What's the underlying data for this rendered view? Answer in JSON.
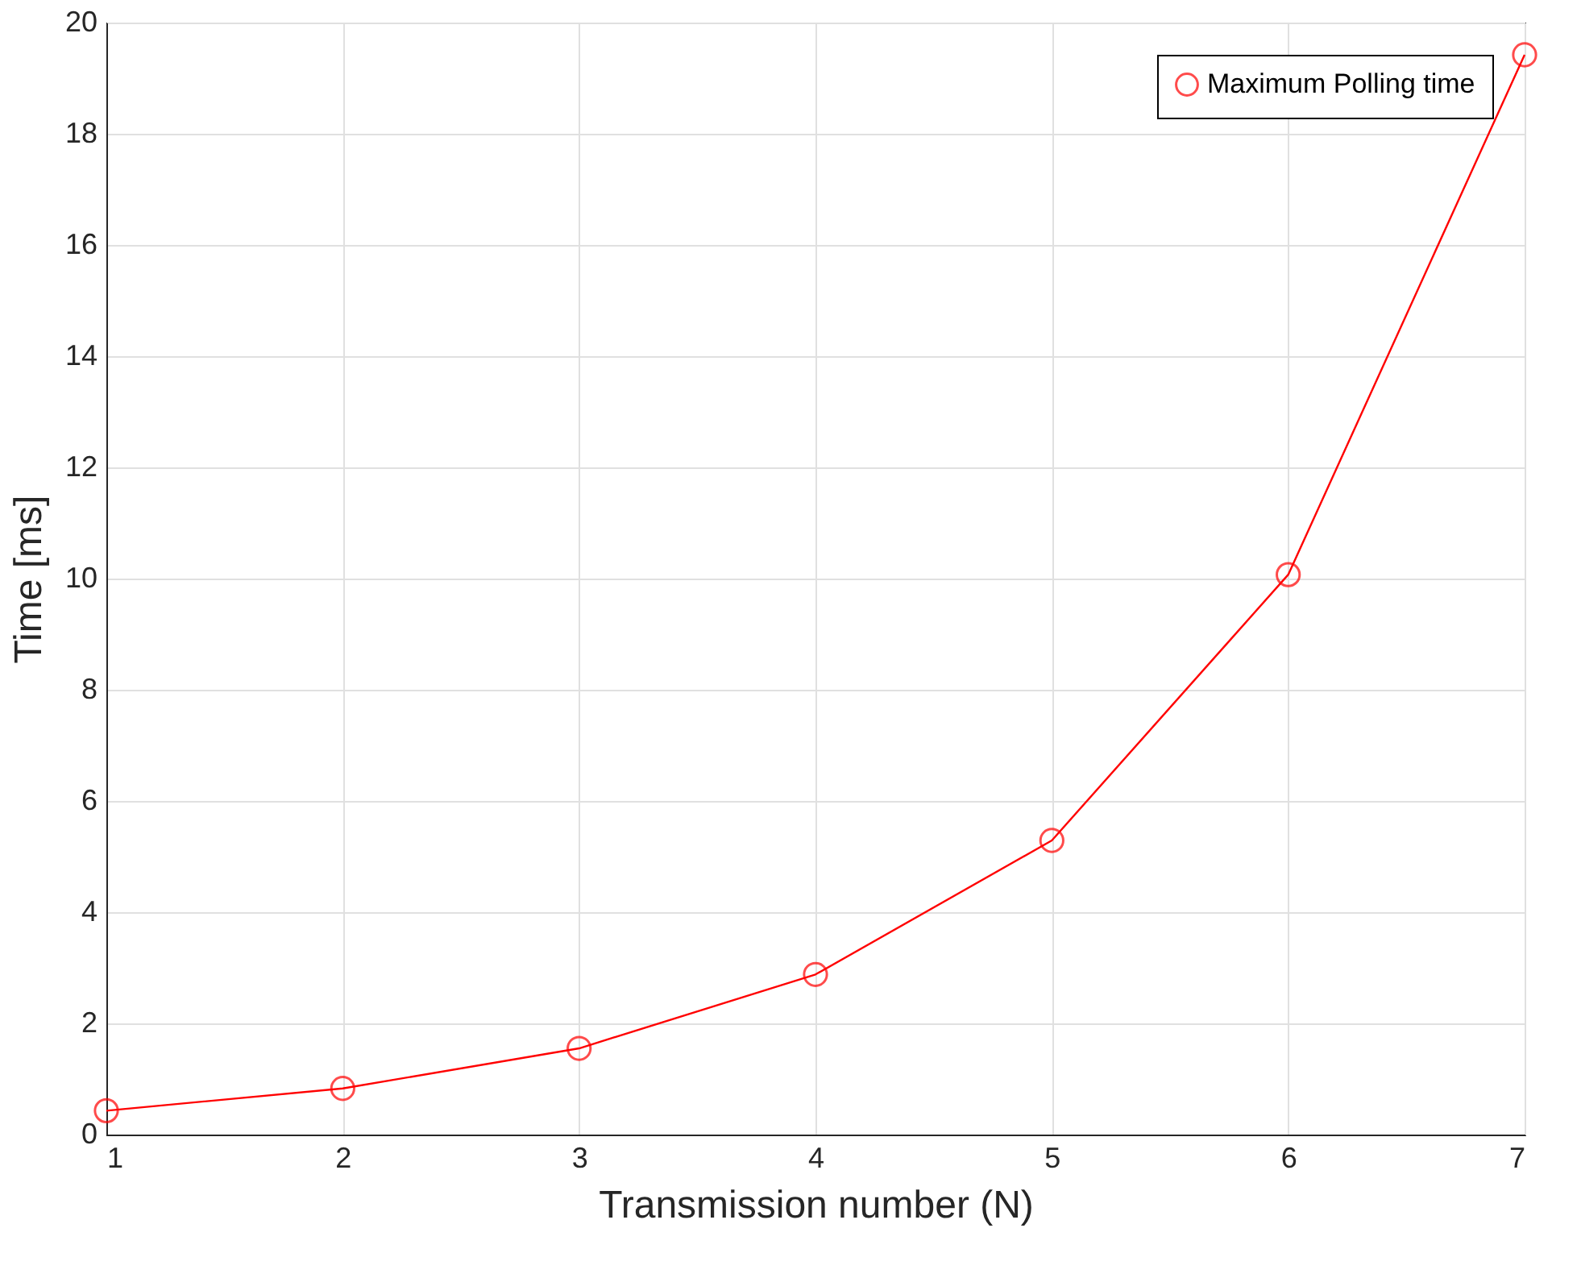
{
  "chart_data": {
    "type": "line",
    "xlabel": "Transmission number (N)",
    "ylabel": "Time [ms]",
    "x": [
      1,
      2,
      3,
      4,
      5,
      6,
      7
    ],
    "series": [
      {
        "name": "Maximum Polling time",
        "color": "#ff0000",
        "values": [
          0.43,
          0.83,
          1.55,
          2.88,
          5.29,
          10.07,
          19.42
        ]
      }
    ],
    "xlim": [
      1,
      7
    ],
    "xticks": [
      1,
      2,
      3,
      4,
      5,
      6,
      7
    ],
    "ylim": [
      0,
      20
    ],
    "yticks": [
      0,
      2,
      4,
      6,
      8,
      10,
      12,
      14,
      16,
      18,
      20
    ],
    "grid": true,
    "legend": "top right",
    "marker": "circle",
    "line_style": "solid"
  }
}
